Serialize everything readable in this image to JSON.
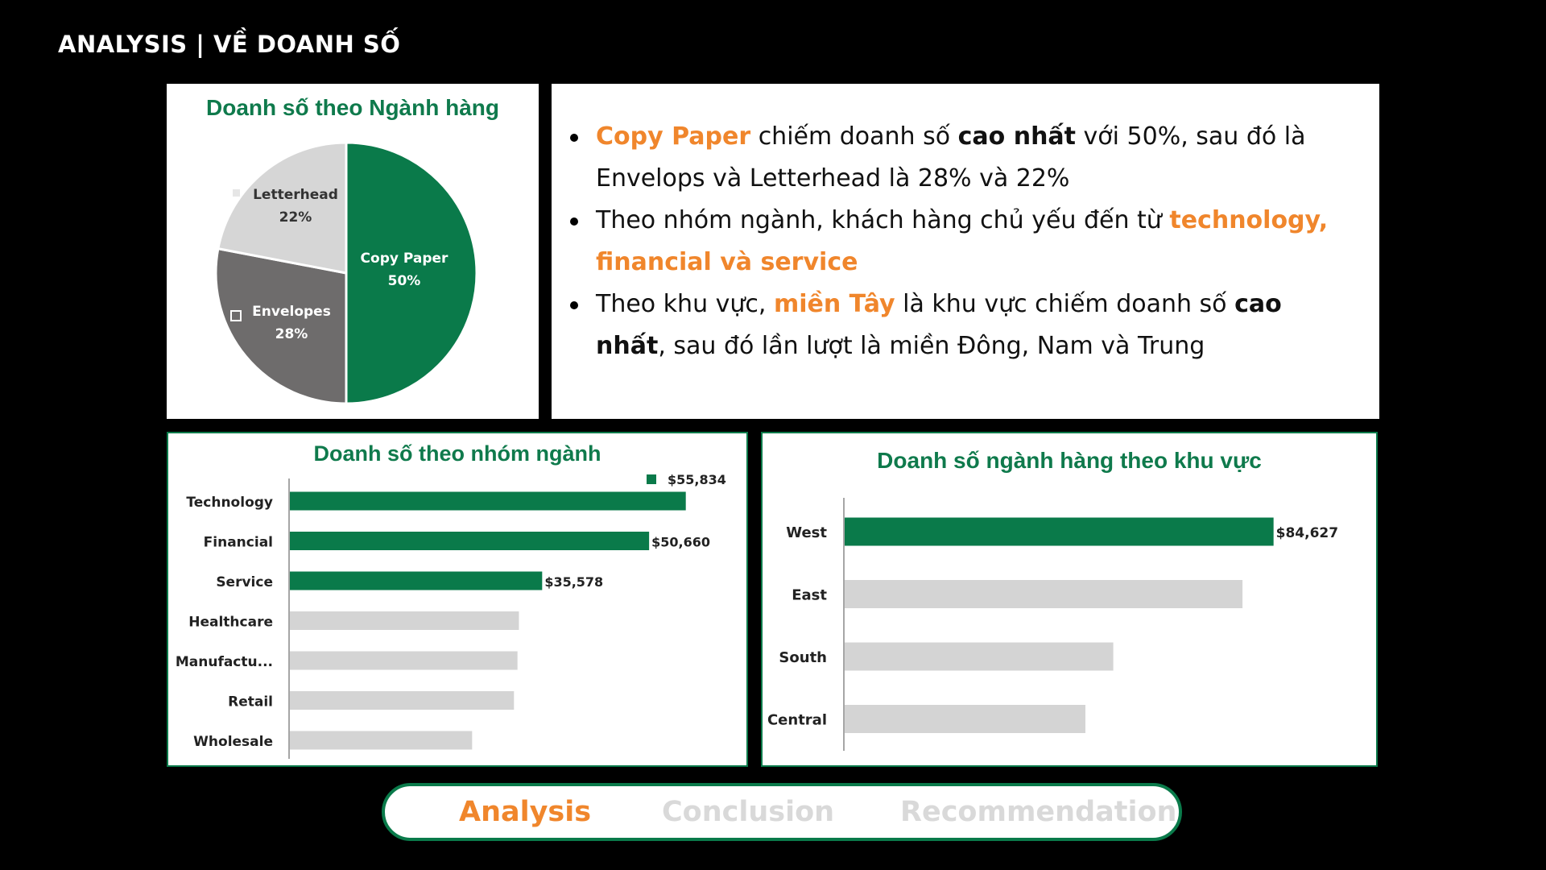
{
  "header": {
    "title": "ANALYSIS | VỀ  DOANH SỐ"
  },
  "colors": {
    "accent_green": "#0a7a4a",
    "bar_green": "#0a7a4a",
    "bar_grey": "#d4d4d4",
    "highlight_orange": "#f0862c",
    "pie_dark_grey": "#6e6c6c",
    "pie_light_grey": "#d6d6d6"
  },
  "pie_chart": {
    "title": "Doanh số theo Ngành hàng",
    "chart_data": {
      "type": "pie",
      "slices": [
        {
          "label": "Copy Paper",
          "value": 50,
          "pct": "50%"
        },
        {
          "label": "Envelopes",
          "value": 28,
          "pct": "28%"
        },
        {
          "label": "Letterhead",
          "value": 22,
          "pct": "22%"
        }
      ]
    }
  },
  "insights": {
    "b1": {
      "p1": "Copy Paper",
      "p2": " chiếm doanh số ",
      "p3": "cao nhất",
      "p4": " với 50%, sau đó là Envelops và Letterhead là 28% và 22%"
    },
    "b2": {
      "p1": "Theo nhóm ngành, khách hàng chủ yếu đến từ ",
      "p2": "technology, financial và service"
    },
    "b3": {
      "p1": "Theo khu vực, ",
      "p2": "miền Tây",
      "p3": " là khu vực chiếm doanh số ",
      "p4": "cao nhất",
      "p5": ", sau đó lần lượt là miền Đông, Nam và Trung"
    }
  },
  "industry_chart": {
    "title": "Doanh số theo nhóm ngành",
    "legend_label": "$55,834",
    "chart_data": {
      "type": "bar",
      "orientation": "horizontal",
      "categories": [
        "Technology",
        "Financial",
        "Service",
        "Healthcare",
        "Manufactu...",
        "Retail",
        "Wholesale"
      ],
      "values": [
        55834,
        50660,
        35578,
        32300,
        32100,
        31600,
        25700
      ],
      "labels": [
        "",
        "$50,660",
        "$35,578",
        "",
        "",
        "",
        ""
      ],
      "highlight": [
        true,
        true,
        true,
        false,
        false,
        false,
        false
      ],
      "xlim": [
        0,
        62000
      ]
    }
  },
  "region_chart": {
    "title": "Doanh số ngành hàng theo khu vực",
    "chart_data": {
      "type": "bar",
      "orientation": "horizontal",
      "categories": [
        "West",
        "East",
        "South",
        "Central"
      ],
      "values": [
        84627,
        78500,
        53000,
        47500
      ],
      "labels": [
        "$84,627",
        "",
        "",
        ""
      ],
      "highlight": [
        true,
        false,
        false,
        false
      ],
      "xlim": [
        0,
        102000
      ]
    }
  },
  "nav": {
    "tabs": [
      {
        "label": "Analysis",
        "active": true
      },
      {
        "label": "Conclusion",
        "active": false
      },
      {
        "label": "Recommendation",
        "active": false
      }
    ]
  }
}
